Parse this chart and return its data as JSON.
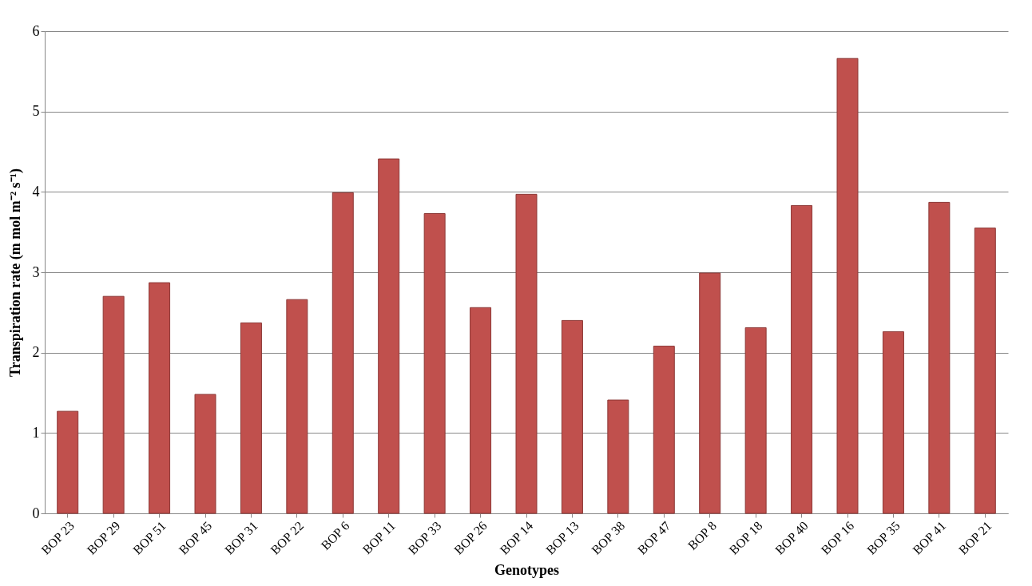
{
  "chart_data": {
    "type": "bar",
    "xlabel": "Genotypes",
    "ylabel": "Transpiration rate (m mol m⁻² s⁻¹)",
    "categories": [
      "BOP 23",
      "BOP 29",
      "BOP 51",
      "BOP 45",
      "BOP 31",
      "BOP 22",
      "BOP 6",
      "BOP 11",
      "BOP 33",
      "BOP 26",
      "BOP 14",
      "BOP 13",
      "BOP 38",
      "BOP 47",
      "BOP 8",
      "BOP 18",
      "BOP 40",
      "BOP 16",
      "BOP 35",
      "BOP 41",
      "BOP 21"
    ],
    "series": [
      {
        "color": "#c0504d",
        "values": [
          1.27,
          2.7,
          2.87,
          1.48,
          2.37,
          2.66,
          3.99,
          4.41,
          3.73,
          2.56,
          3.97,
          2.4,
          1.41,
          2.08,
          2.99,
          2.31,
          3.83,
          5.66,
          2.26,
          3.87,
          3.55
        ]
      }
    ],
    "ylim": [
      0,
      6
    ],
    "yticks": [
      0,
      1,
      2,
      3,
      4,
      5,
      6
    ],
    "grid": "y",
    "legend": false
  }
}
